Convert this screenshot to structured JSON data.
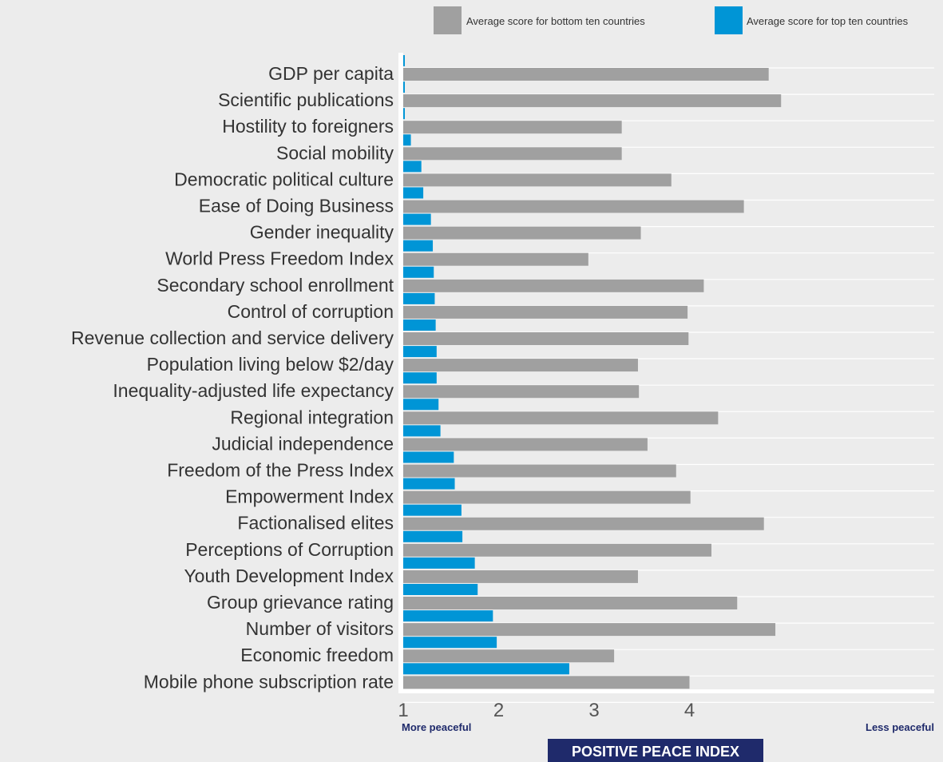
{
  "chart_data": {
    "type": "bar",
    "orientation": "horizontal",
    "title": "POSITIVE PEACE INDEX",
    "xlim": [
      1,
      6.5
    ],
    "ticks": [
      1,
      2,
      3,
      4
    ],
    "scale_left_label": "More peaceful",
    "scale_right_label": "Less peaceful",
    "legend_position": "top-right",
    "grid": true,
    "categories": [
      "GDP per capita",
      "Scientific publications",
      "Hostility to foreigners",
      "Social mobility",
      "Democratic political culture",
      "Ease of Doing Business",
      "Gender inequality",
      "World Press Freedom Index",
      "Secondary school enrollment",
      "Control of corruption",
      "Revenue collection and service delivery",
      "Population living below $2/day",
      "Inequality-adjusted life expectancy",
      "Regional integration",
      "Judicial independence",
      "Freedom of the Press Index",
      "Empowerment Index",
      "Factionalised elites",
      "Perceptions of Corruption",
      "Youth Development Index",
      "Group grievance rating",
      "Number of visitors",
      "Economic freedom",
      "Mobile phone subscription rate"
    ],
    "series": [
      {
        "name": "Average score for top ten countries",
        "color": "#0095d6",
        "values": [
          1.0,
          1.0,
          1.01,
          1.08,
          1.19,
          1.21,
          1.29,
          1.31,
          1.32,
          1.33,
          1.34,
          1.35,
          1.35,
          1.37,
          1.39,
          1.53,
          1.54,
          1.61,
          1.62,
          1.75,
          1.78,
          1.94,
          1.98,
          2.74
        ]
      },
      {
        "name": "Average score for bottom ten countries",
        "color": "#a0a0a0",
        "values": [
          4.83,
          4.96,
          3.29,
          3.29,
          3.81,
          4.57,
          3.49,
          2.94,
          4.15,
          3.98,
          3.99,
          3.46,
          3.47,
          4.3,
          3.56,
          3.86,
          4.01,
          4.78,
          4.23,
          3.46,
          4.5,
          4.9,
          3.21,
          4.0
        ]
      }
    ]
  }
}
